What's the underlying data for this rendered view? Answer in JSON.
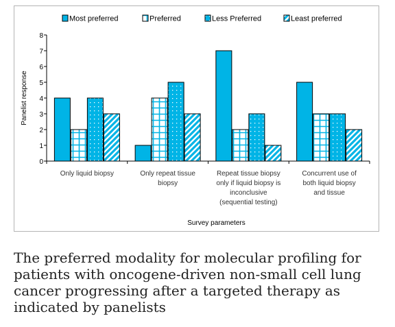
{
  "caption": "The preferred modality for molecular profiling for patients with oncogene-driven non-small cell lung cancer progressing after a targeted therapy as indicated by panelists",
  "chart_data": {
    "type": "bar",
    "categories": [
      [
        "Only liquid biopsy"
      ],
      [
        "Only repeat tissue",
        "biopsy"
      ],
      [
        "Repeat tissue biopsy",
        "only if liquid biopsy is",
        "inconclusive",
        "(sequential testing)"
      ],
      [
        "Concurrent use of",
        "both liquid biopsy",
        "and tissue"
      ]
    ],
    "series": [
      {
        "name": "Most preferred",
        "values": [
          4,
          1,
          7,
          5
        ],
        "pattern": "solid"
      },
      {
        "name": "Preferred",
        "values": [
          2,
          4,
          2,
          3
        ],
        "pattern": "grid"
      },
      {
        "name": "Less Preferred",
        "values": [
          4,
          5,
          3,
          3
        ],
        "pattern": "dots"
      },
      {
        "name": "Least preferred",
        "values": [
          3,
          3,
          1,
          2
        ],
        "pattern": "diagonal"
      }
    ],
    "xlabel": "Survey parameters",
    "ylabel": "Panelist response",
    "ylim": [
      0,
      8
    ],
    "yticks": [
      0,
      1,
      2,
      3,
      4,
      5,
      6,
      7,
      8
    ],
    "legend_position": "top",
    "grid": false,
    "colors": {
      "fill": "#00b4e6",
      "stroke": "#000000",
      "pattern_line": "#ffffff"
    }
  }
}
